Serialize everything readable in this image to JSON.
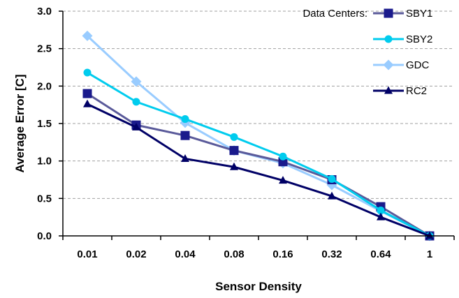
{
  "chart_data": {
    "type": "line",
    "title": "",
    "xlabel": "Sensor Density",
    "ylabel": "Average Error [C]",
    "categories": [
      "0.01",
      "0.02",
      "0.04",
      "0.08",
      "0.16",
      "0.32",
      "0.64",
      "1"
    ],
    "yticks": [
      "0.0",
      "0.5",
      "1.0",
      "1.5",
      "2.0",
      "2.5",
      "3.0"
    ],
    "ylim": [
      0,
      3.0
    ],
    "grid": "horizontal dashed",
    "legend_title": "Data Centers:",
    "legend_position": "top-right",
    "series": [
      {
        "name": "SBY1",
        "color": "#5a5a9a",
        "marker_color": "#1a1a8c",
        "marker": "square",
        "values": [
          1.9,
          1.48,
          1.34,
          1.14,
          0.99,
          0.75,
          0.39,
          0.0
        ]
      },
      {
        "name": "SBY2",
        "color": "#00ccee",
        "marker_color": "#00ccee",
        "marker": "circle",
        "values": [
          2.18,
          1.79,
          1.56,
          1.32,
          1.06,
          0.76,
          0.34,
          0.0
        ]
      },
      {
        "name": "GDC",
        "color": "#99ccff",
        "marker_color": "#99ccff",
        "marker": "diamond",
        "values": [
          2.67,
          2.06,
          1.51,
          1.14,
          0.97,
          0.68,
          0.33,
          0.0
        ]
      },
      {
        "name": "RC2",
        "color": "#000066",
        "marker_color": "#000066",
        "marker": "triangle",
        "values": [
          1.76,
          1.45,
          1.03,
          0.92,
          0.74,
          0.53,
          0.25,
          0.0
        ]
      }
    ]
  }
}
